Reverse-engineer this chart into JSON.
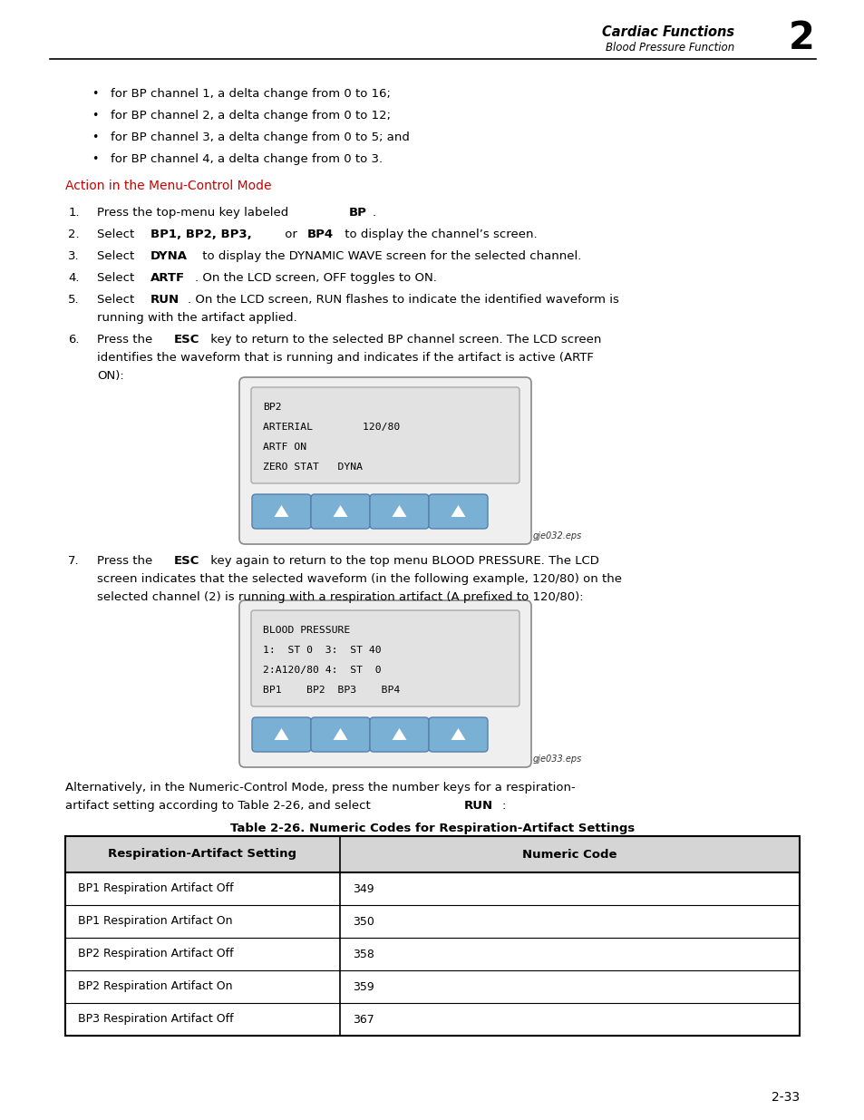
{
  "header_title": "Cardiac Functions",
  "header_subtitle": "Blood Pressure Function",
  "header_number": "2",
  "bullet_items": [
    "for BP channel 1, a delta change from 0 to 16;",
    "for BP channel 2, a delta change from 0 to 12;",
    "for BP channel 3, a delta change from 0 to 5; and",
    "for BP channel 4, a delta change from 0 to 3."
  ],
  "section_heading": "Action in the Menu-Control Mode",
  "section_heading_color": "#CC0000",
  "lcd1_lines": [
    "BP2",
    "ARTERIAL        120/80",
    "ARTF ON",
    "ZERO STAT   DYNA"
  ],
  "lcd1_label": "gje032.eps",
  "lcd2_lines": [
    "BLOOD PRESSURE",
    "1:  ST 0  3:  ST 40",
    "2:A120/80 4:  ST  0",
    "BP1    BP2  BP3    BP4"
  ],
  "lcd2_label": "gje033.eps",
  "table_title": "Table 2-26. Numeric Codes for Respiration-Artifact Settings",
  "table_headers": [
    "Respiration-Artifact Setting",
    "Numeric Code"
  ],
  "table_rows": [
    [
      "BP1 Respiration Artifact Off",
      "349"
    ],
    [
      "BP1 Respiration Artifact On",
      "350"
    ],
    [
      "BP2 Respiration Artifact Off",
      "358"
    ],
    [
      "BP2 Respiration Artifact On",
      "359"
    ],
    [
      "BP3 Respiration Artifact Off",
      "367"
    ]
  ],
  "page_number": "2-33",
  "bg_color": "#ffffff",
  "button_color": "#7ab0d4",
  "table_header_bg": "#d0d0d0"
}
